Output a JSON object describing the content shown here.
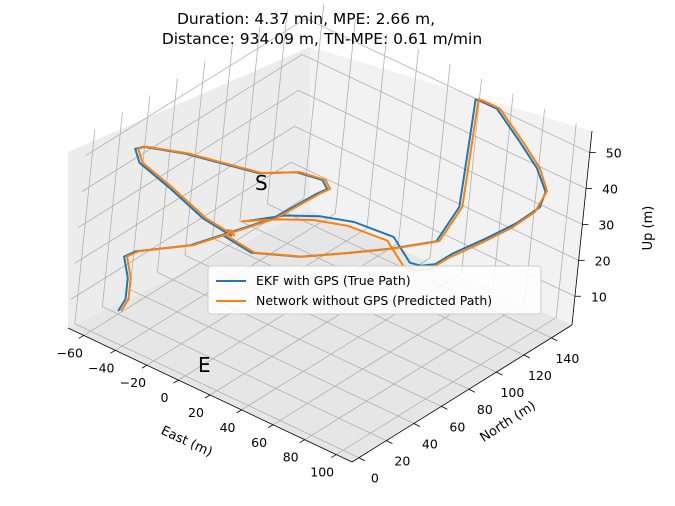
{
  "chart_data": {
    "type": "line",
    "projection": "3d",
    "title_line1": "Duration: 4.37 min, MPE: 2.66 m,",
    "title_line2": "Distance: 934.09 m, TN-MPE: 0.61 m/min",
    "xlabel": "East (m)",
    "ylabel": "North (m)",
    "zlabel": "Up (m)",
    "xlim": [
      -70,
      110
    ],
    "ylim": [
      -5,
      155
    ],
    "zlim": [
      2,
      56
    ],
    "xticks": [
      -60,
      -40,
      -20,
      0,
      20,
      40,
      60,
      80,
      100
    ],
    "yticks": [
      0,
      20,
      40,
      60,
      80,
      100,
      120,
      140
    ],
    "zticks": [
      10,
      20,
      30,
      40,
      50
    ],
    "grid": true,
    "legend_position": "center-right",
    "start_label": "S",
    "end_label": "E",
    "series": [
      {
        "name": "EKF with GPS (True Path)",
        "color": "#1f77b4",
        "points": [
          [
            5,
            30,
            39
          ],
          [
            15,
            45,
            39
          ],
          [
            26,
            58,
            38
          ],
          [
            38,
            70,
            36
          ],
          [
            55,
            80,
            33
          ],
          [
            68,
            78,
            29
          ],
          [
            72,
            82,
            28
          ],
          [
            78,
            85,
            29
          ],
          [
            84,
            90,
            32
          ],
          [
            95,
            100,
            36
          ],
          [
            105,
            110,
            40
          ],
          [
            112,
            118,
            44
          ],
          [
            113,
            120,
            48
          ],
          [
            100,
            128,
            50
          ],
          [
            80,
            138,
            51
          ],
          [
            55,
            150,
            52
          ],
          [
            45,
            150,
            52
          ],
          [
            40,
            152,
            51
          ],
          [
            40,
            150,
            36
          ],
          [
            40,
            148,
            22
          ],
          [
            36,
            138,
            14
          ],
          [
            20,
            124,
            12
          ],
          [
            5,
            110,
            11
          ],
          [
            -12,
            95,
            10
          ],
          [
            -30,
            80,
            11
          ],
          [
            -40,
            70,
            16
          ],
          [
            -30,
            60,
            22
          ],
          [
            -20,
            50,
            25
          ],
          [
            -30,
            40,
            30
          ],
          [
            -45,
            30,
            38
          ],
          [
            -58,
            22,
            44
          ],
          [
            -60,
            20,
            48
          ],
          [
            -58,
            24,
            48
          ],
          [
            -45,
            40,
            45
          ],
          [
            -30,
            50,
            43
          ],
          [
            -15,
            60,
            41
          ],
          [
            0,
            70,
            42
          ],
          [
            10,
            78,
            40
          ],
          [
            15,
            76,
            39
          ],
          [
            12,
            72,
            38
          ],
          [
            -5,
            62,
            30
          ],
          [
            -35,
            38,
            22
          ],
          [
            -55,
            22,
            20
          ],
          [
            -60,
            20,
            18
          ],
          [
            -58,
            22,
            12
          ],
          [
            -58,
            22,
            6
          ],
          [
            -60,
            20,
            3
          ]
        ]
      },
      {
        "name": "Network without GPS (Predicted Path)",
        "color": "#ff7f0e",
        "points": [
          [
            3,
            28,
            39
          ],
          [
            13,
            43,
            38
          ],
          [
            24,
            56,
            37
          ],
          [
            36,
            68,
            35
          ],
          [
            53,
            78,
            32
          ],
          [
            66,
            76,
            28
          ],
          [
            71,
            80,
            27
          ],
          [
            77,
            83,
            28
          ],
          [
            83,
            88,
            31
          ],
          [
            94,
            98,
            35
          ],
          [
            104,
            108,
            39
          ],
          [
            111,
            116,
            43
          ],
          [
            113,
            121,
            48
          ],
          [
            101,
            129,
            50
          ],
          [
            81,
            139,
            51
          ],
          [
            56,
            151,
            52
          ],
          [
            46,
            151,
            52
          ],
          [
            41,
            153,
            51
          ],
          [
            41,
            151,
            36
          ],
          [
            41,
            149,
            22
          ],
          [
            37,
            139,
            14
          ],
          [
            21,
            125,
            12
          ],
          [
            6,
            111,
            11
          ],
          [
            -11,
            96,
            10
          ],
          [
            -29,
            81,
            11
          ],
          [
            -39,
            71,
            16
          ],
          [
            -29,
            61,
            22
          ],
          [
            -19,
            51,
            25
          ],
          [
            -29,
            41,
            30
          ],
          [
            -44,
            31,
            38
          ],
          [
            -57,
            23,
            44
          ],
          [
            -59,
            21,
            48
          ],
          [
            -57,
            25,
            48
          ],
          [
            -44,
            41,
            45
          ],
          [
            -29,
            51,
            43
          ],
          [
            -14,
            61,
            41
          ],
          [
            1,
            71,
            42
          ],
          [
            11,
            79,
            40
          ],
          [
            16,
            77,
            39
          ],
          [
            13,
            73,
            38
          ],
          [
            -4,
            63,
            30
          ],
          [
            -34,
            39,
            22
          ],
          [
            -54,
            23,
            20
          ],
          [
            -59,
            21,
            18
          ],
          [
            -57,
            23,
            12
          ],
          [
            -57,
            23,
            6
          ],
          [
            -59,
            21,
            3
          ]
        ]
      }
    ]
  }
}
